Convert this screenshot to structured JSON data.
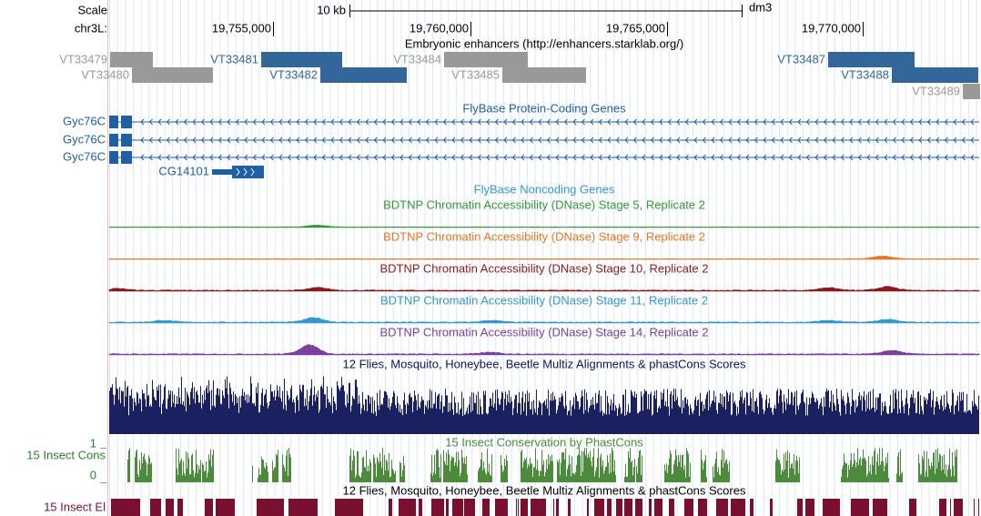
{
  "header": {
    "scale": "Scale",
    "chrom": "chr3L:",
    "bar_label": "10 kb",
    "assembly": "dm3",
    "positions": [
      "19,755,000",
      "19,760,000",
      "19,765,000",
      "19,770,000"
    ]
  },
  "enhancers": {
    "title": "Embryonic enhancers (http://enhancers.starklab.org/)",
    "items": [
      "VT33479",
      "VT33480",
      "VT33481",
      "VT33482",
      "VT33484",
      "VT33485",
      "VT33487",
      "VT33488",
      "VT33489"
    ]
  },
  "protein_genes": {
    "title": "FlyBase Protein-Coding Genes",
    "genes": [
      "Gyc76C",
      "Gyc76C",
      "Gyc76C",
      "CG14101"
    ]
  },
  "noncoding_genes": {
    "title": "FlyBase Noncoding Genes"
  },
  "dnase": {
    "tracks": [
      "BDTNP Chromatin Accessibility (DNase) Stage 5, Replicate 2",
      "BDTNP Chromatin Accessibility (DNase) Stage 9, Replicate 2",
      "BDTNP Chromatin Accessibility (DNase) Stage 10, Replicate 2",
      "BDTNP Chromatin Accessibility (DNase) Stage 11, Replicate 2",
      "BDTNP Chromatin Accessibility (DNase) Stage 14, Replicate 2"
    ]
  },
  "multiz": {
    "title": "12 Flies, Mosquito, Honeybee, Beetle Multiz Alignments & phastCons Scores"
  },
  "phastcons": {
    "title": "15 Insect Conservation by PhastCons",
    "label": "15 Insect Cons",
    "ymax": "1",
    "ymin": "0"
  },
  "elements": {
    "title": "12 Flies, Mosquito, Honeybee, Beetle Multiz Alignments & phastCons Scores",
    "label": "15 Insect El"
  }
}
